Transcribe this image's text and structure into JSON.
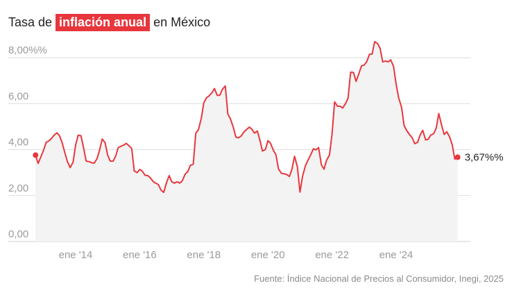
{
  "title": {
    "before": "Tasa de",
    "highlight": "inflación anual",
    "after": "en México"
  },
  "source": "Fuente: Índice Nacional de Precios al Consumidor, Inegi, 2025",
  "colors": {
    "accent": "#e8363d",
    "grid": "#dddddd",
    "axis_text": "#9a9a9a",
    "area_fill": "#f3f3f3"
  },
  "chart_data": {
    "type": "line",
    "title": "Tasa de inflación anual en México",
    "xlabel": "",
    "ylabel": "",
    "ylim": [
      0,
      8.8
    ],
    "xlim": [
      2012.55,
      2025.05
    ],
    "yticks": [
      {
        "value": 0,
        "label": "0,00"
      },
      {
        "value": 2,
        "label": "2,00"
      },
      {
        "value": 4,
        "label": "4,00"
      },
      {
        "value": 6,
        "label": "6,00"
      },
      {
        "value": 8,
        "label": "8,00%%"
      }
    ],
    "xticks": [
      {
        "value": 2014,
        "label": "ene '14"
      },
      {
        "value": 2016,
        "label": "ene '16"
      },
      {
        "value": 2018,
        "label": "ene '18"
      },
      {
        "value": 2020,
        "label": "ene '20"
      },
      {
        "value": 2022,
        "label": "ene '22"
      },
      {
        "value": 2024,
        "label": "ene '24"
      }
    ],
    "grid": true,
    "last_value_label": "3,67%%",
    "series": [
      {
        "values": [
          [
            2012.75,
            3.76
          ],
          [
            2012.83,
            3.4
          ],
          [
            2013.0,
            3.97
          ],
          [
            2013.08,
            4.32
          ],
          [
            2013.17,
            4.38
          ],
          [
            2013.25,
            4.49
          ],
          [
            2013.33,
            4.63
          ],
          [
            2013.42,
            4.73
          ],
          [
            2013.5,
            4.6
          ],
          [
            2013.58,
            4.3
          ],
          [
            2013.67,
            3.83
          ],
          [
            2013.75,
            3.46
          ],
          [
            2013.83,
            3.22
          ],
          [
            2013.92,
            3.45
          ],
          [
            2014.0,
            4.2
          ],
          [
            2014.08,
            4.63
          ],
          [
            2014.17,
            4.6
          ],
          [
            2014.25,
            4.06
          ],
          [
            2014.33,
            3.5
          ],
          [
            2014.42,
            3.48
          ],
          [
            2014.5,
            3.43
          ],
          [
            2014.58,
            3.41
          ],
          [
            2014.67,
            3.61
          ],
          [
            2014.75,
            3.99
          ],
          [
            2014.83,
            4.46
          ],
          [
            2014.92,
            4.3
          ],
          [
            2015.0,
            3.76
          ],
          [
            2015.08,
            3.5
          ],
          [
            2015.17,
            3.5
          ],
          [
            2015.25,
            3.72
          ],
          [
            2015.33,
            4.09
          ],
          [
            2015.42,
            4.15
          ],
          [
            2015.5,
            4.2
          ],
          [
            2015.58,
            4.27
          ],
          [
            2015.67,
            4.16
          ],
          [
            2015.75,
            4.05
          ],
          [
            2015.83,
            3.07
          ],
          [
            2015.92,
            3.0
          ],
          [
            2016.0,
            3.14
          ],
          [
            2016.08,
            3.06
          ],
          [
            2016.17,
            2.88
          ],
          [
            2016.25,
            2.87
          ],
          [
            2016.33,
            2.78
          ],
          [
            2016.42,
            2.61
          ],
          [
            2016.5,
            2.54
          ],
          [
            2016.58,
            2.48
          ],
          [
            2016.67,
            2.23
          ],
          [
            2016.75,
            2.14
          ],
          [
            2016.83,
            2.54
          ],
          [
            2016.92,
            2.87
          ],
          [
            2017.0,
            2.6
          ],
          [
            2017.08,
            2.54
          ],
          [
            2017.17,
            2.6
          ],
          [
            2017.25,
            2.54
          ],
          [
            2017.33,
            2.65
          ],
          [
            2017.42,
            2.94
          ],
          [
            2017.5,
            3.04
          ],
          [
            2017.58,
            3.32
          ],
          [
            2017.67,
            3.36
          ],
          [
            2017.75,
            4.72
          ],
          [
            2017.83,
            4.86
          ],
          [
            2017.92,
            5.35
          ],
          [
            2018.0,
            6.04
          ],
          [
            2018.08,
            6.25
          ],
          [
            2018.17,
            6.35
          ],
          [
            2018.25,
            6.47
          ],
          [
            2018.33,
            6.66
          ],
          [
            2018.42,
            6.36
          ],
          [
            2018.5,
            6.37
          ],
          [
            2018.58,
            6.63
          ],
          [
            2018.67,
            6.77
          ],
          [
            2018.75,
            5.55
          ],
          [
            2018.83,
            5.34
          ],
          [
            2018.92,
            4.97
          ],
          [
            2019.0,
            4.55
          ],
          [
            2019.08,
            4.51
          ],
          [
            2019.17,
            4.6
          ],
          [
            2019.25,
            4.77
          ],
          [
            2019.33,
            4.87
          ],
          [
            2019.42,
            4.98
          ],
          [
            2019.5,
            4.89
          ],
          [
            2019.58,
            4.72
          ],
          [
            2019.67,
            4.81
          ],
          [
            2019.75,
            4.41
          ],
          [
            2019.83,
            3.94
          ],
          [
            2019.92,
            4.0
          ],
          [
            2020.0,
            4.39
          ],
          [
            2020.08,
            4.28
          ],
          [
            2020.17,
            3.97
          ],
          [
            2020.25,
            3.78
          ],
          [
            2020.33,
            3.16
          ],
          [
            2020.42,
            2.97
          ],
          [
            2020.5,
            2.95
          ],
          [
            2020.58,
            2.92
          ],
          [
            2020.67,
            2.83
          ],
          [
            2020.75,
            3.15
          ],
          [
            2020.83,
            3.71
          ],
          [
            2020.92,
            3.25
          ],
          [
            2021.0,
            2.15
          ],
          [
            2021.08,
            2.84
          ],
          [
            2021.17,
            3.3
          ],
          [
            2021.25,
            3.54
          ],
          [
            2021.33,
            3.76
          ],
          [
            2021.42,
            4.04
          ],
          [
            2021.5,
            3.99
          ],
          [
            2021.58,
            4.09
          ],
          [
            2021.67,
            3.33
          ],
          [
            2021.75,
            3.15
          ],
          [
            2021.83,
            3.54
          ],
          [
            2021.92,
            3.76
          ],
          [
            2022.0,
            4.67
          ],
          [
            2022.08,
            6.08
          ],
          [
            2022.17,
            5.89
          ],
          [
            2022.25,
            5.89
          ],
          [
            2022.33,
            5.81
          ],
          [
            2022.42,
            6.0
          ],
          [
            2022.5,
            6.24
          ],
          [
            2022.58,
            7.37
          ],
          [
            2022.67,
            7.36
          ],
          [
            2022.75,
            6.97
          ],
          [
            2022.83,
            7.28
          ],
          [
            2022.92,
            7.65
          ],
          [
            2023.0,
            7.68
          ],
          [
            2023.08,
            7.82
          ],
          [
            2023.17,
            8.15
          ],
          [
            2023.25,
            8.16
          ],
          [
            2023.33,
            8.7
          ],
          [
            2023.42,
            8.62
          ],
          [
            2023.5,
            8.41
          ],
          [
            2023.58,
            7.82
          ],
          [
            2023.67,
            7.86
          ],
          [
            2023.75,
            7.82
          ],
          [
            2023.83,
            7.91
          ],
          [
            2023.92,
            7.62
          ],
          [
            2024.0,
            6.85
          ],
          [
            2024.08,
            6.25
          ],
          [
            2024.17,
            5.84
          ],
          [
            2024.25,
            5.04
          ],
          [
            2024.33,
            4.83
          ],
          [
            2024.42,
            4.65
          ],
          [
            2024.5,
            4.52
          ],
          [
            2024.58,
            4.26
          ],
          [
            2024.67,
            4.32
          ],
          [
            2024.75,
            4.64
          ],
          [
            2024.83,
            4.84
          ],
          [
            2024.92,
            4.42
          ],
          [
            2025.0,
            4.45
          ],
          [
            2025.08,
            4.63
          ],
          [
            2025.17,
            4.69
          ],
          [
            2025.25,
            4.93
          ],
          [
            2025.33,
            5.57
          ],
          [
            2025.42,
            5.06
          ],
          [
            2025.5,
            4.66
          ],
          [
            2025.58,
            4.78
          ],
          [
            2025.67,
            4.55
          ],
          [
            2025.75,
            4.21
          ],
          [
            2025.83,
            3.59
          ],
          [
            2025.92,
            3.67
          ]
        ]
      }
    ]
  }
}
